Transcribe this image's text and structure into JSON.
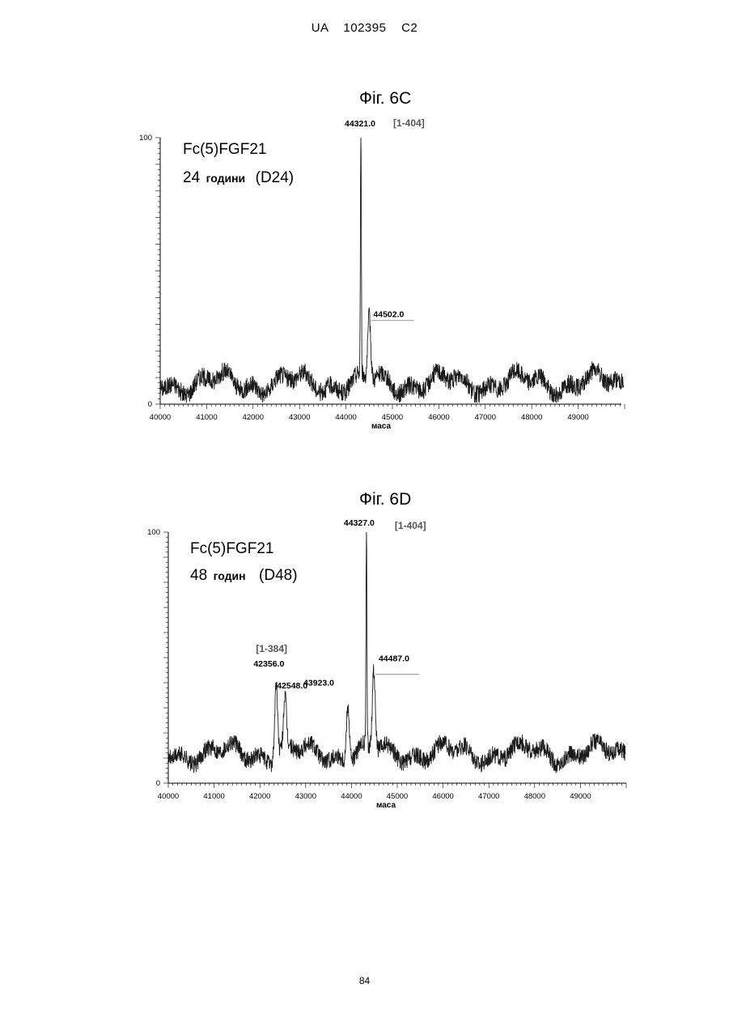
{
  "header": {
    "text": "UA   102395   C2"
  },
  "page_number": "84",
  "chart_data": [
    {
      "type": "line",
      "figure_title": "Фіг. 6С",
      "sample_name": "Fc(5)FGF21",
      "sample_time_value": "24",
      "sample_time_unit": "години",
      "sample_code": "(D24)",
      "xlabel": "маса",
      "ylabel": "",
      "xlim": [
        40000,
        50000
      ],
      "ylim": [
        0,
        100
      ],
      "x_ticks": [
        40000,
        41000,
        42000,
        43000,
        44000,
        45000,
        46000,
        47000,
        48000,
        49000
      ],
      "y_ticks": [
        0,
        100
      ],
      "peaks": [
        {
          "mass": 44321.0,
          "label": "44321.0",
          "fragment": "[1-404]",
          "intensity": 100
        },
        {
          "mass": 44502.0,
          "label": "44502.0",
          "fragment": "",
          "intensity": 32
        }
      ],
      "baseline_intensity": 8,
      "colors": {
        "line": "#1a1a1a",
        "fragment": "#555555"
      }
    },
    {
      "type": "line",
      "figure_title": "Фіг. 6D",
      "sample_name": "Fc(5)FGF21",
      "sample_time_value": "48",
      "sample_time_unit": "годин",
      "sample_code": "(D48)",
      "xlabel": "маса",
      "ylabel": "",
      "xlim": [
        40000,
        50000
      ],
      "ylim": [
        0,
        100
      ],
      "x_ticks": [
        40000,
        41000,
        42000,
        43000,
        44000,
        45000,
        46000,
        47000,
        48000,
        49000
      ],
      "y_ticks": [
        0,
        100
      ],
      "peaks": [
        {
          "mass": 44327.0,
          "label": "44327.0",
          "fragment": "[1-404]",
          "intensity": 100
        },
        {
          "mass": 42356.0,
          "label": "42356.0",
          "fragment": "[1-384]",
          "intensity": 42
        },
        {
          "mass": 42548.0,
          "label": "42548.0",
          "fragment": "",
          "intensity": 32
        },
        {
          "mass": 43923.0,
          "label": "43923.0",
          "fragment": "",
          "intensity": 35
        },
        {
          "mass": 44487.0,
          "label": "44487.0",
          "fragment": "",
          "intensity": 44
        }
      ],
      "baseline_intensity": 12,
      "colors": {
        "line": "#1a1a1a",
        "fragment": "#555555"
      }
    }
  ]
}
